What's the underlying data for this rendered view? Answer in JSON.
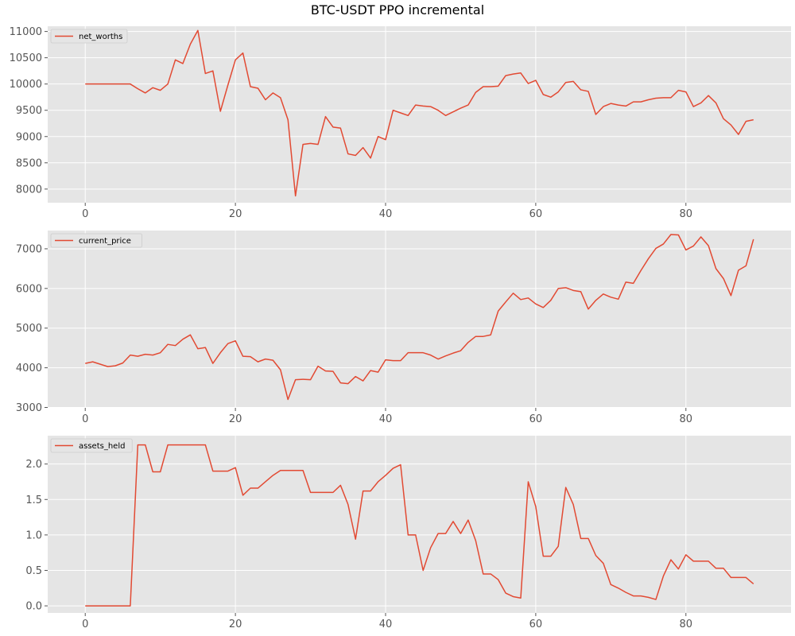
{
  "figure_title": "BTC-USDT PPO incremental",
  "colors": {
    "line": "#e24a33",
    "panel_bg": "#e5e5e5",
    "grid": "#ffffff",
    "tick": "#555555"
  },
  "chart_data": [
    {
      "type": "line",
      "title": "",
      "xlabel": "",
      "ylabel": "",
      "legend_position": "top-left",
      "grid": true,
      "xlim": [
        -5,
        94
      ],
      "ylim": [
        7740,
        11100
      ],
      "xticks": [
        0,
        20,
        40,
        60,
        80
      ],
      "xtick_labels": [
        "0",
        "20",
        "40",
        "60",
        "80"
      ],
      "yticks": [
        8000,
        8500,
        9000,
        9500,
        10000,
        10500,
        11000
      ],
      "ytick_labels": [
        "8000",
        "8500",
        "9000",
        "9500",
        "10000",
        "10500",
        "11000"
      ],
      "series": [
        {
          "name": "net_worths",
          "x": [
            0,
            1,
            2,
            3,
            4,
            5,
            6,
            7,
            8,
            9,
            10,
            11,
            12,
            13,
            14,
            15,
            16,
            17,
            18,
            19,
            20,
            21,
            22,
            23,
            24,
            25,
            26,
            27,
            28,
            29,
            30,
            31,
            32,
            33,
            34,
            35,
            36,
            37,
            38,
            39,
            40,
            41,
            42,
            43,
            44,
            45,
            46,
            47,
            48,
            49,
            50,
            51,
            52,
            53,
            54,
            55,
            56,
            57,
            58,
            59,
            60,
            61,
            62,
            63,
            64,
            65,
            66,
            67,
            68,
            69,
            70,
            71,
            72,
            73,
            74,
            75,
            76,
            77,
            78,
            79,
            80,
            81,
            82,
            83,
            84,
            85,
            86,
            87,
            88,
            89
          ],
          "values": [
            10000,
            10000,
            10000,
            10000,
            10000,
            10000,
            10000,
            9910,
            9830,
            9930,
            9880,
            10000,
            10460,
            10390,
            10760,
            11020,
            10200,
            10250,
            9480,
            9980,
            10460,
            10590,
            9950,
            9920,
            9700,
            9830,
            9740,
            9320,
            7870,
            8850,
            8870,
            8850,
            9380,
            9180,
            9160,
            8670,
            8640,
            8790,
            8590,
            9000,
            8940,
            9500,
            9450,
            9400,
            9600,
            9580,
            9570,
            9500,
            9400,
            9470,
            9540,
            9600,
            9840,
            9950,
            9950,
            9960,
            10160,
            10190,
            10210,
            10010,
            10070,
            9800,
            9750,
            9850,
            10030,
            10050,
            9890,
            9860,
            9420,
            9570,
            9630,
            9600,
            9580,
            9660,
            9660,
            9700,
            9730,
            9740,
            9740,
            9880,
            9850,
            9570,
            9640,
            9780,
            9640,
            9340,
            9220,
            9040,
            9290,
            9320
          ]
        }
      ]
    },
    {
      "type": "line",
      "title": "",
      "xlabel": "",
      "ylabel": "",
      "legend_position": "top-left",
      "grid": true,
      "xlim": [
        -5,
        94
      ],
      "ylim": [
        2990,
        7460
      ],
      "xticks": [
        0,
        20,
        40,
        60,
        80
      ],
      "xtick_labels": [
        "0",
        "20",
        "40",
        "60",
        "80"
      ],
      "yticks": [
        3000,
        4000,
        5000,
        6000,
        7000
      ],
      "ytick_labels": [
        "3000",
        "4000",
        "5000",
        "6000",
        "7000"
      ],
      "series": [
        {
          "name": "current_price",
          "x": [
            0,
            1,
            2,
            3,
            4,
            5,
            6,
            7,
            8,
            9,
            10,
            11,
            12,
            13,
            14,
            15,
            16,
            17,
            18,
            19,
            20,
            21,
            22,
            23,
            24,
            25,
            26,
            27,
            28,
            29,
            30,
            31,
            32,
            33,
            34,
            35,
            36,
            37,
            38,
            39,
            40,
            41,
            42,
            43,
            44,
            45,
            46,
            47,
            48,
            49,
            50,
            51,
            52,
            53,
            54,
            55,
            56,
            57,
            58,
            59,
            60,
            61,
            62,
            63,
            64,
            65,
            66,
            67,
            68,
            69,
            70,
            71,
            72,
            73,
            74,
            75,
            76,
            77,
            78,
            79,
            80,
            81,
            82,
            83,
            84,
            85,
            86,
            87,
            88,
            89
          ],
          "values": [
            4110,
            4150,
            4090,
            4030,
            4050,
            4120,
            4320,
            4290,
            4340,
            4320,
            4380,
            4590,
            4560,
            4720,
            4830,
            4480,
            4510,
            4110,
            4380,
            4610,
            4680,
            4290,
            4280,
            4150,
            4220,
            4190,
            3950,
            3200,
            3700,
            3710,
            3700,
            4040,
            3920,
            3910,
            3620,
            3600,
            3780,
            3670,
            3930,
            3890,
            4200,
            4180,
            4180,
            4380,
            4380,
            4380,
            4320,
            4220,
            4300,
            4370,
            4430,
            4640,
            4790,
            4790,
            4830,
            5430,
            5660,
            5880,
            5720,
            5760,
            5610,
            5520,
            5700,
            6000,
            6020,
            5950,
            5920,
            5480,
            5700,
            5860,
            5780,
            5730,
            6160,
            6130,
            6450,
            6750,
            7010,
            7120,
            7360,
            7350,
            6970,
            7070,
            7300,
            7080,
            6500,
            6250,
            5820,
            6460,
            6570,
            7240
          ]
        }
      ]
    },
    {
      "type": "line",
      "title": "",
      "xlabel": "",
      "ylabel": "",
      "legend_position": "top-left",
      "grid": true,
      "xlim": [
        -5,
        94
      ],
      "ylim": [
        -0.1,
        2.4
      ],
      "xticks": [
        0,
        20,
        40,
        60,
        80
      ],
      "xtick_labels": [
        "0",
        "20",
        "40",
        "60",
        "80"
      ],
      "yticks": [
        0.0,
        0.5,
        1.0,
        1.5,
        2.0
      ],
      "ytick_labels": [
        "0.0",
        "0.5",
        "1.0",
        "1.5",
        "2.0"
      ],
      "series": [
        {
          "name": "assets_held",
          "x": [
            0,
            1,
            2,
            3,
            4,
            5,
            6,
            7,
            8,
            9,
            10,
            11,
            12,
            13,
            14,
            15,
            16,
            17,
            18,
            19,
            20,
            21,
            22,
            23,
            24,
            25,
            26,
            27,
            28,
            29,
            30,
            31,
            32,
            33,
            34,
            35,
            36,
            37,
            38,
            39,
            40,
            41,
            42,
            43,
            44,
            45,
            46,
            47,
            48,
            49,
            50,
            51,
            52,
            53,
            54,
            55,
            56,
            57,
            58,
            59,
            60,
            61,
            62,
            63,
            64,
            65,
            66,
            67,
            68,
            69,
            70,
            71,
            72,
            73,
            74,
            75,
            76,
            77,
            78,
            79,
            80,
            81,
            82,
            83,
            84,
            85,
            86,
            87,
            88,
            89
          ],
          "values": [
            0,
            0,
            0,
            0,
            0,
            0,
            0,
            2.27,
            2.27,
            1.89,
            1.89,
            2.27,
            2.27,
            2.27,
            2.27,
            2.27,
            2.27,
            1.9,
            1.9,
            1.9,
            1.95,
            1.56,
            1.66,
            1.66,
            1.75,
            1.84,
            1.91,
            1.91,
            1.91,
            1.91,
            1.6,
            1.6,
            1.6,
            1.6,
            1.7,
            1.43,
            0.94,
            1.62,
            1.62,
            1.75,
            1.84,
            1.94,
            1.99,
            1.0,
            1.0,
            0.5,
            0.82,
            1.02,
            1.02,
            1.19,
            1.02,
            1.21,
            0.92,
            0.45,
            0.45,
            0.37,
            0.18,
            0.13,
            0.11,
            1.75,
            1.4,
            0.7,
            0.7,
            0.84,
            1.67,
            1.43,
            0.95,
            0.95,
            0.71,
            0.6,
            0.3,
            0.25,
            0.19,
            0.14,
            0.14,
            0.12,
            0.09,
            0.42,
            0.65,
            0.52,
            0.72,
            0.63,
            0.63,
            0.63,
            0.53,
            0.53,
            0.4,
            0.4,
            0.4,
            0.31
          ]
        }
      ]
    }
  ]
}
